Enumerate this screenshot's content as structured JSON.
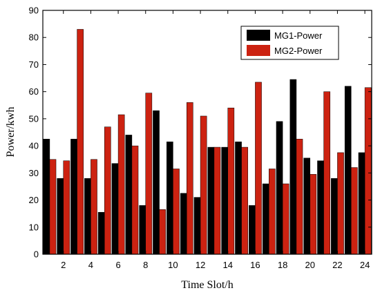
{
  "chart_data": {
    "type": "bar",
    "xlabel": "Time Slot/h",
    "ylabel": "Power/kwh",
    "ylim": [
      0,
      90
    ],
    "yticks": [
      0,
      10,
      20,
      30,
      40,
      50,
      60,
      70,
      80,
      90
    ],
    "xlim": [
      0.5,
      24.5
    ],
    "xticks": [
      2,
      4,
      6,
      8,
      10,
      12,
      14,
      16,
      18,
      20,
      22,
      24
    ],
    "categories": [
      1,
      2,
      3,
      4,
      5,
      6,
      7,
      8,
      9,
      10,
      11,
      12,
      13,
      14,
      15,
      16,
      17,
      18,
      19,
      20,
      21,
      22,
      23,
      24
    ],
    "legend_position": "top-right",
    "grid": false,
    "series": [
      {
        "name": "MG1-Power",
        "color": "#000000",
        "values": [
          42.5,
          28,
          42.5,
          28,
          15.5,
          33.5,
          44,
          18,
          53,
          41.5,
          22.5,
          21,
          39.5,
          39.5,
          41.5,
          18,
          26,
          49,
          64.5,
          35.5,
          34.5,
          28,
          62,
          37.5
        ]
      },
      {
        "name": "MG2-Power",
        "color": "#cc2211",
        "values": [
          35,
          34.5,
          83,
          35,
          47,
          51.5,
          40,
          59.5,
          16.5,
          31.5,
          56,
          51,
          39.5,
          54,
          39.5,
          63.5,
          31.5,
          26,
          42.5,
          29.5,
          60,
          37.5,
          32,
          61.5
        ]
      }
    ]
  }
}
